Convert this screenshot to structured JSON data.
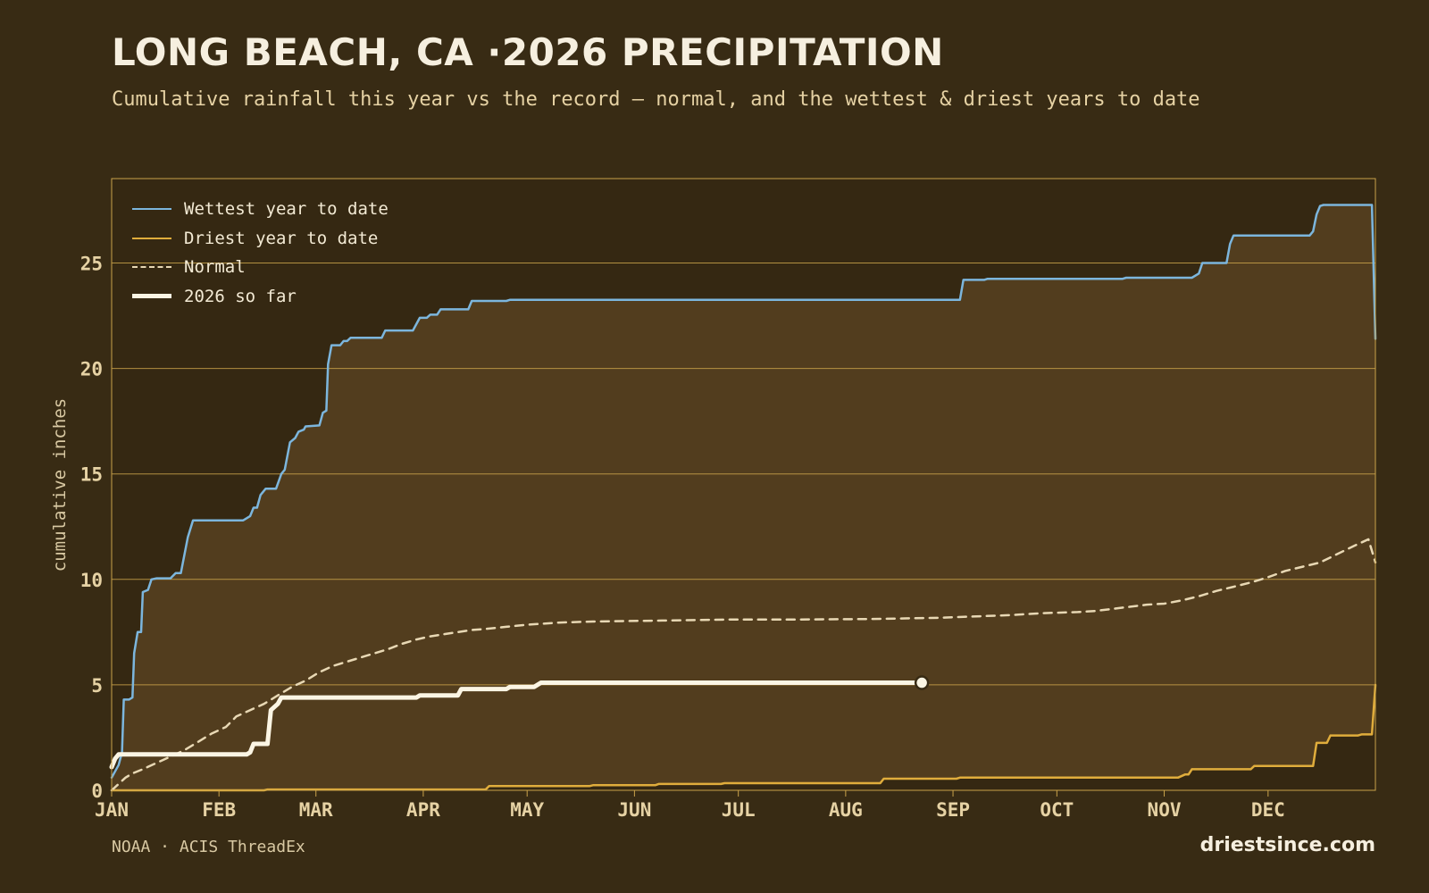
{
  "title": "LONG BEACH, CA ·2026 PRECIPITATION",
  "subtitle": "Cumulative rainfall this year vs the record — normal, and the wettest & driest years to date",
  "footer": {
    "source": "NOAA · ACIS ThreadEx",
    "site": "driestsince.com"
  },
  "colors": {
    "background": "#382b14",
    "band_fill": "#523d1e",
    "grid": "#c9a24a",
    "wettest": "#7cb6dd",
    "driest": "#e0ad3c",
    "normal": "#e8d8b4",
    "current": "#fbf5e4"
  },
  "chart_data": {
    "type": "line",
    "ylabel": "cumulative inches",
    "ylim": [
      0,
      29
    ],
    "xlim": [
      1,
      366
    ],
    "yticks": [
      0,
      5,
      10,
      15,
      20,
      25
    ],
    "grid": "horizontal",
    "legend_position": "top-left",
    "x_unit": "day of year",
    "months": [
      {
        "label": "JAN",
        "day": 1
      },
      {
        "label": "FEB",
        "day": 32
      },
      {
        "label": "MAR",
        "day": 60
      },
      {
        "label": "APR",
        "day": 91
      },
      {
        "label": "MAY",
        "day": 121
      },
      {
        "label": "JUN",
        "day": 152
      },
      {
        "label": "JUL",
        "day": 182
      },
      {
        "label": "AUG",
        "day": 213
      },
      {
        "label": "SEP",
        "day": 244
      },
      {
        "label": "OCT",
        "day": 274
      },
      {
        "label": "NOV",
        "day": 305
      },
      {
        "label": "DEC",
        "day": 335
      }
    ],
    "series": [
      {
        "name": "Wettest year to date",
        "style": "solid",
        "points": [
          [
            1,
            0.6
          ],
          [
            3,
            1.2
          ],
          [
            4,
            1.8
          ],
          [
            4.5,
            4.3
          ],
          [
            6,
            4.3
          ],
          [
            7,
            4.4
          ],
          [
            7.5,
            6.5
          ],
          [
            8.5,
            7.5
          ],
          [
            9.5,
            7.5
          ],
          [
            10,
            9.4
          ],
          [
            11.5,
            9.5
          ],
          [
            12.5,
            10.0
          ],
          [
            14,
            10.05
          ],
          [
            18,
            10.05
          ],
          [
            19.5,
            10.3
          ],
          [
            21,
            10.3
          ],
          [
            23,
            12.0
          ],
          [
            24.5,
            12.8
          ],
          [
            39,
            12.8
          ],
          [
            41,
            13.0
          ],
          [
            42,
            13.4
          ],
          [
            43,
            13.4
          ],
          [
            44,
            14.0
          ],
          [
            45.5,
            14.3
          ],
          [
            48.5,
            14.3
          ],
          [
            50,
            15.0
          ],
          [
            51,
            15.2
          ],
          [
            52.5,
            16.5
          ],
          [
            54,
            16.7
          ],
          [
            55,
            17.0
          ],
          [
            56.5,
            17.1
          ],
          [
            57,
            17.25
          ],
          [
            61,
            17.3
          ],
          [
            62,
            17.9
          ],
          [
            63,
            18.0
          ],
          [
            63.5,
            20.2
          ],
          [
            64.5,
            21.1
          ],
          [
            67,
            21.1
          ],
          [
            68,
            21.3
          ],
          [
            69,
            21.3
          ],
          [
            70,
            21.45
          ],
          [
            79,
            21.45
          ],
          [
            80,
            21.8
          ],
          [
            88,
            21.8
          ],
          [
            90,
            22.4
          ],
          [
            92,
            22.4
          ],
          [
            93,
            22.55
          ],
          [
            95,
            22.55
          ],
          [
            96,
            22.8
          ],
          [
            104,
            22.8
          ],
          [
            105,
            23.2
          ],
          [
            115,
            23.2
          ],
          [
            116,
            23.25
          ],
          [
            246,
            23.25
          ],
          [
            247,
            24.2
          ],
          [
            253,
            24.2
          ],
          [
            254,
            24.25
          ],
          [
            293,
            24.25
          ],
          [
            294,
            24.3
          ],
          [
            313,
            24.3
          ],
          [
            315,
            24.5
          ],
          [
            316,
            25.0
          ],
          [
            323,
            25.0
          ],
          [
            324,
            25.9
          ],
          [
            325,
            26.3
          ],
          [
            341,
            26.3
          ],
          [
            347,
            26.3
          ],
          [
            348,
            26.5
          ],
          [
            349,
            27.3
          ],
          [
            350,
            27.7
          ],
          [
            351,
            27.75
          ],
          [
            365,
            27.75
          ],
          [
            366,
            21.4
          ]
        ]
      },
      {
        "name": "Driest year to date",
        "style": "solid",
        "points": [
          [
            1,
            0.0
          ],
          [
            45,
            0.0
          ],
          [
            46,
            0.04
          ],
          [
            109,
            0.04
          ],
          [
            110,
            0.2
          ],
          [
            139,
            0.2
          ],
          [
            140,
            0.24
          ],
          [
            158,
            0.24
          ],
          [
            159,
            0.3
          ],
          [
            177,
            0.3
          ],
          [
            178,
            0.34
          ],
          [
            223,
            0.34
          ],
          [
            224,
            0.55
          ],
          [
            245,
            0.55
          ],
          [
            246,
            0.6
          ],
          [
            309,
            0.6
          ],
          [
            311,
            0.75
          ],
          [
            312,
            0.75
          ],
          [
            313,
            1.0
          ],
          [
            330,
            1.0
          ],
          [
            331,
            1.15
          ],
          [
            348,
            1.15
          ],
          [
            349,
            2.25
          ],
          [
            352,
            2.25
          ],
          [
            353,
            2.6
          ],
          [
            361,
            2.6
          ],
          [
            362,
            2.65
          ],
          [
            365,
            2.65
          ],
          [
            366,
            5.0
          ]
        ]
      },
      {
        "name": "Normal",
        "style": "dashed",
        "points": [
          [
            1,
            0.0
          ],
          [
            3,
            0.3
          ],
          [
            5,
            0.6
          ],
          [
            7,
            0.8
          ],
          [
            10,
            1.0
          ],
          [
            14,
            1.3
          ],
          [
            18,
            1.6
          ],
          [
            22,
            1.9
          ],
          [
            26,
            2.3
          ],
          [
            30,
            2.7
          ],
          [
            34,
            3.0
          ],
          [
            37,
            3.5
          ],
          [
            41,
            3.8
          ],
          [
            45,
            4.1
          ],
          [
            49,
            4.5
          ],
          [
            53,
            4.9
          ],
          [
            57,
            5.2
          ],
          [
            61,
            5.6
          ],
          [
            65,
            5.9
          ],
          [
            69,
            6.1
          ],
          [
            73,
            6.3
          ],
          [
            77,
            6.5
          ],
          [
            81,
            6.7
          ],
          [
            85,
            6.95
          ],
          [
            89,
            7.15
          ],
          [
            93,
            7.3
          ],
          [
            97,
            7.4
          ],
          [
            101,
            7.5
          ],
          [
            105,
            7.6
          ],
          [
            109,
            7.65
          ],
          [
            115,
            7.75
          ],
          [
            121,
            7.85
          ],
          [
            130,
            7.95
          ],
          [
            140,
            8.0
          ],
          [
            160,
            8.05
          ],
          [
            180,
            8.1
          ],
          [
            200,
            8.1
          ],
          [
            220,
            8.12
          ],
          [
            240,
            8.18
          ],
          [
            260,
            8.3
          ],
          [
            270,
            8.4
          ],
          [
            280,
            8.45
          ],
          [
            285,
            8.5
          ],
          [
            290,
            8.6
          ],
          [
            295,
            8.7
          ],
          [
            300,
            8.8
          ],
          [
            305,
            8.85
          ],
          [
            310,
            9.0
          ],
          [
            315,
            9.2
          ],
          [
            320,
            9.45
          ],
          [
            325,
            9.65
          ],
          [
            330,
            9.85
          ],
          [
            335,
            10.1
          ],
          [
            340,
            10.4
          ],
          [
            345,
            10.6
          ],
          [
            350,
            10.8
          ],
          [
            355,
            11.2
          ],
          [
            360,
            11.6
          ],
          [
            364,
            11.9
          ],
          [
            366,
            10.8
          ]
        ]
      },
      {
        "name": "2026 so far",
        "style": "bold",
        "points": [
          [
            1,
            1.1
          ],
          [
            2,
            1.5
          ],
          [
            3,
            1.7
          ],
          [
            40,
            1.7
          ],
          [
            41,
            1.8
          ],
          [
            42,
            2.2
          ],
          [
            46,
            2.2
          ],
          [
            47,
            3.8
          ],
          [
            49,
            4.1
          ],
          [
            50,
            4.4
          ],
          [
            89,
            4.4
          ],
          [
            90,
            4.5
          ],
          [
            101,
            4.5
          ],
          [
            102,
            4.8
          ],
          [
            115,
            4.8
          ],
          [
            116,
            4.9
          ],
          [
            123,
            4.9
          ],
          [
            125,
            5.1
          ],
          [
            235,
            5.1
          ]
        ]
      }
    ]
  }
}
